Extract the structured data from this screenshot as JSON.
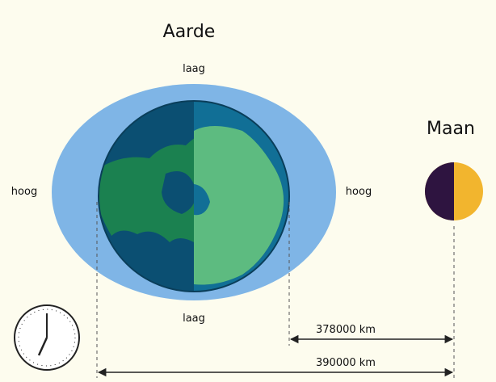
{
  "title": "Aarde",
  "tide_labels": {
    "top": "laag",
    "left": "hoog",
    "right": "hoog",
    "bottom": "laag"
  },
  "moon": {
    "label": "Maan"
  },
  "distances": {
    "moon_to_earth_near_side": "378000 km",
    "moon_to_earth_far_side": "390000 km"
  }
}
